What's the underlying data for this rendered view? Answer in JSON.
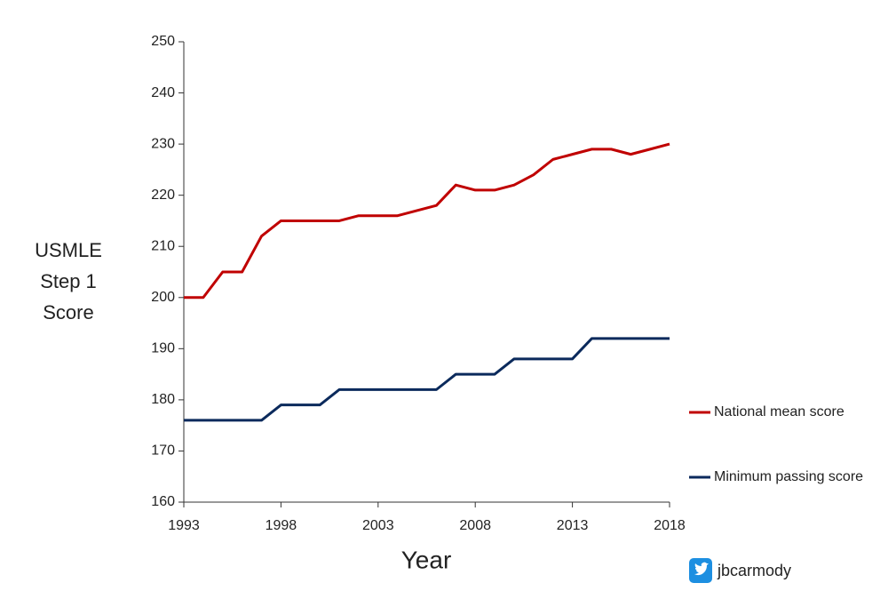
{
  "chart_data": {
    "type": "line",
    "xlabel": "Year",
    "ylabel": [
      "USMLE",
      "Step 1",
      "Score"
    ],
    "credit": "jbcarmody",
    "x": [
      1993,
      1994,
      1995,
      1996,
      1997,
      1998,
      1999,
      2000,
      2001,
      2002,
      2003,
      2004,
      2005,
      2006,
      2007,
      2008,
      2009,
      2010,
      2011,
      2012,
      2013,
      2014,
      2015,
      2016,
      2017,
      2018
    ],
    "series": [
      {
        "name": "National mean score",
        "color": "#c00000",
        "values": [
          200,
          200,
          205,
          205,
          212,
          215,
          215,
          215,
          215,
          216,
          216,
          216,
          217,
          218,
          222,
          221,
          221,
          222,
          224,
          227,
          228,
          229,
          229,
          228,
          229,
          230
        ]
      },
      {
        "name": "Minimum passing score",
        "color": "#0b2a5c",
        "values": [
          176,
          176,
          176,
          176,
          176,
          179,
          179,
          179,
          182,
          182,
          182,
          182,
          182,
          182,
          185,
          185,
          185,
          188,
          188,
          188,
          188,
          192,
          192,
          192,
          192,
          192
        ]
      }
    ],
    "xlim": [
      1993,
      2018
    ],
    "xticks": [
      1993,
      1998,
      2003,
      2008,
      2013,
      2018
    ],
    "ylim": [
      160,
      250
    ],
    "yticks": [
      160,
      170,
      180,
      190,
      200,
      210,
      220,
      230,
      240,
      250
    ],
    "grid": false,
    "legend": "right"
  }
}
